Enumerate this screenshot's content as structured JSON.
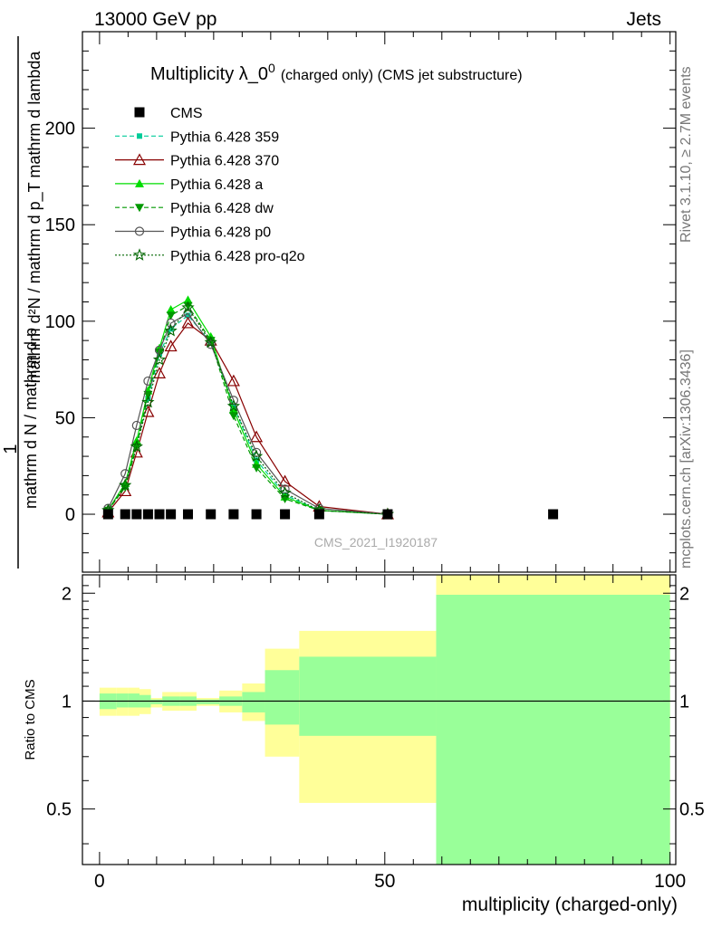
{
  "header": {
    "left": "13000 GeV pp",
    "right": "Jets"
  },
  "side_text": {
    "top": "Rivet 3.1.10, ≥ 2.7M events",
    "bottom": "mcplots.cern.ch [arXiv:1306.3436]"
  },
  "watermark": "CMS_2021_I1920187",
  "colors": {
    "yellow_band": "#ffff99",
    "green_band": "#99ff99",
    "cms": "#000000",
    "p359": "#00cc99",
    "p370": "#880000",
    "pa": "#00dd00",
    "pdw": "#009900",
    "pp0": "#555555",
    "pq2o": "#006600"
  },
  "chart_data": [
    {
      "type": "line",
      "title_main": "Multiplicity λ_0",
      "title_sup": "0",
      "title_sub": "(charged only) (CMS jet substructure)",
      "ylabel_top": "1",
      "ylabel_bottom": "mathrm d N / mathrm d p",
      "ylabel_middle": "mathrm d p_T mathrm d lambda",
      "ylabel_num": "mathrm d²N",
      "ylabel_full": "mathrm d²N / mathrm d p_T mathrm d lambda",
      "xlim": [
        -3,
        101
      ],
      "ylim": [
        -30,
        250
      ],
      "yticks": [
        0,
        50,
        100,
        150,
        200
      ],
      "xticks": [
        0,
        50,
        100
      ],
      "series": [
        {
          "name": "CMS",
          "style": "square",
          "x": [
            1.5,
            4.5,
            6.5,
            8.5,
            10.5,
            12.5,
            15.5,
            19.5,
            23.5,
            27.5,
            32.5,
            38.5,
            50.5,
            79.5
          ],
          "y": [
            0,
            0,
            0,
            0,
            0,
            0,
            0,
            0,
            0,
            0,
            0,
            0,
            0,
            0
          ]
        },
        {
          "name": "Pythia 6.428 359",
          "style": "dash-square",
          "x": [
            1.5,
            4.5,
            6.5,
            8.5,
            10.5,
            12.5,
            15.5,
            19.5,
            23.5,
            27.5,
            32.5,
            38.5,
            50.5
          ],
          "y": [
            2,
            15,
            36,
            60,
            83,
            96,
            103,
            89,
            56,
            28,
            10,
            2,
            0
          ]
        },
        {
          "name": "Pythia 6.428 370",
          "style": "solid-triangle-open",
          "x": [
            1.5,
            4.5,
            6.5,
            8.5,
            10.5,
            12.5,
            15.5,
            19.5,
            23.5,
            27.5,
            32.5,
            38.5,
            50.5
          ],
          "y": [
            1,
            12,
            32,
            53,
            73,
            87,
            99,
            90,
            69,
            40,
            17,
            4,
            0
          ]
        },
        {
          "name": "Pythia 6.428 a",
          "style": "solid-triangle",
          "x": [
            1.5,
            4.5,
            6.5,
            8.5,
            10.5,
            12.5,
            15.5,
            19.5,
            23.5,
            27.5,
            32.5,
            38.5,
            50.5
          ],
          "y": [
            2,
            16,
            38,
            64,
            86,
            106,
            111,
            92,
            54,
            26,
            9,
            2,
            0
          ]
        },
        {
          "name": "Pythia 6.428 dw",
          "style": "dash-triangle-down",
          "x": [
            1.5,
            4.5,
            6.5,
            8.5,
            10.5,
            12.5,
            15.5,
            19.5,
            23.5,
            27.5,
            32.5,
            38.5,
            50.5
          ],
          "y": [
            2,
            14,
            35,
            62,
            84,
            103,
            108,
            90,
            51,
            24,
            8,
            2,
            0
          ]
        },
        {
          "name": "Pythia 6.428 p0",
          "style": "solid-circle-open",
          "x": [
            1.5,
            4.5,
            6.5,
            8.5,
            10.5,
            12.5,
            15.5,
            19.5,
            23.5,
            27.5,
            32.5,
            38.5,
            50.5
          ],
          "y": [
            3,
            21,
            46,
            69,
            85,
            99,
            104,
            88,
            59,
            32,
            13,
            3,
            0
          ]
        },
        {
          "name": "Pythia 6.428 pro-q2o",
          "style": "dot-star",
          "x": [
            1.5,
            4.5,
            6.5,
            8.5,
            10.5,
            12.5,
            15.5,
            19.5,
            23.5,
            27.5,
            32.5,
            38.5,
            50.5
          ],
          "y": [
            2,
            15,
            35,
            58,
            80,
            95,
            107,
            89,
            56,
            30,
            11,
            2,
            0
          ]
        }
      ]
    },
    {
      "type": "area",
      "ylabel": "Ratio to CMS",
      "xlabel": "multiplicity (charged-only)",
      "xlim": [
        -3,
        101
      ],
      "ylim": [
        0.35,
        2.25
      ],
      "yticks": [
        0.5,
        1,
        2
      ],
      "ytick_labels": [
        "0.5",
        "1",
        "2"
      ],
      "xticks": [
        0,
        50,
        100
      ],
      "reference_line": 1,
      "bins": [
        {
          "x0": 0,
          "x1": 3,
          "yellow": [
            0.91,
            1.09
          ],
          "green": [
            0.95,
            1.05
          ]
        },
        {
          "x0": 3,
          "x1": 5,
          "yellow": [
            0.91,
            1.09
          ],
          "green": [
            0.96,
            1.05
          ]
        },
        {
          "x0": 5,
          "x1": 7,
          "yellow": [
            0.91,
            1.09
          ],
          "green": [
            0.96,
            1.05
          ]
        },
        {
          "x0": 7,
          "x1": 9,
          "yellow": [
            0.92,
            1.08
          ],
          "green": [
            0.96,
            1.04
          ]
        },
        {
          "x0": 9,
          "x1": 11,
          "yellow": [
            0.96,
            1.02
          ],
          "green": [
            0.98,
            1.01
          ]
        },
        {
          "x0": 11,
          "x1": 14,
          "yellow": [
            0.94,
            1.06
          ],
          "green": [
            0.97,
            1.03
          ]
        },
        {
          "x0": 14,
          "x1": 17,
          "yellow": [
            0.94,
            1.06
          ],
          "green": [
            0.97,
            1.03
          ]
        },
        {
          "x0": 17,
          "x1": 21,
          "yellow": [
            0.97,
            1.02
          ],
          "green": [
            0.98,
            1.01
          ]
        },
        {
          "x0": 21,
          "x1": 25,
          "yellow": [
            0.93,
            1.07
          ],
          "green": [
            0.97,
            1.03
          ]
        },
        {
          "x0": 25,
          "x1": 29,
          "yellow": [
            0.88,
            1.12
          ],
          "green": [
            0.93,
            1.06
          ]
        },
        {
          "x0": 29,
          "x1": 35,
          "yellow": [
            0.7,
            1.4
          ],
          "green": [
            0.86,
            1.22
          ]
        },
        {
          "x0": 35,
          "x1": 59,
          "yellow": [
            0.52,
            1.57
          ],
          "green": [
            0.8,
            1.33
          ]
        },
        {
          "x0": 59,
          "x1": 100,
          "yellow": [
            0.35,
            2.3
          ],
          "green": [
            0.35,
            1.98
          ]
        }
      ]
    }
  ]
}
